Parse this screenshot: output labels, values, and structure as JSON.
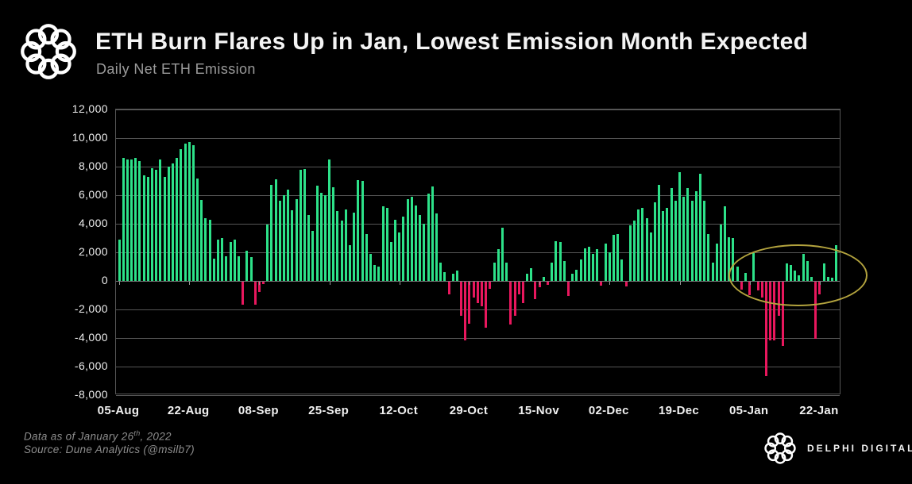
{
  "header": {
    "title": "ETH Burn Flares Up in Jan, Lowest Emission Month Expected",
    "subtitle": "Daily Net ETH Emission"
  },
  "footer": {
    "data_as_of_prefix": "Data as of January 26",
    "data_as_of_sup": "th",
    "data_as_of_suffix": ", 2022",
    "source_line": "Source:  Dune Analytics (@msilb7)",
    "brand_name": "DELPHI DIGITAL"
  },
  "chart_data": {
    "type": "bar",
    "title": "ETH Burn Flares Up in Jan, Lowest Emission Month Expected",
    "subtitle": "Daily Net ETH Emission",
    "ylabel": "",
    "xlabel": "",
    "ylim": [
      -8000,
      12000
    ],
    "y_tick_step": 2000,
    "grid": true,
    "legend": "none",
    "start_date": "2021-08-05",
    "end_date": "2022-01-26",
    "x_tick_labels": [
      "05-Aug",
      "22-Aug",
      "08-Sep",
      "25-Sep",
      "12-Oct",
      "29-Oct",
      "15-Nov",
      "02-Dec",
      "19-Dec",
      "05-Jan",
      "22-Jan"
    ],
    "x_tick_interval_days": 17,
    "colors": {
      "positive": "#2de189",
      "negative": "#e8175d",
      "grid": "#565656",
      "zero_axis": "#7a7a7a",
      "annotation": "#b3a33e",
      "background": "#000000",
      "title": "#f4f4f4",
      "subtitle": "#9a9a9a"
    },
    "annotation_ellipse": {
      "meaning": "highlights January low-emission / burn flare-up period",
      "start_day_index": 148,
      "end_day_index": 181,
      "center_value": 450,
      "value_radius": 2050
    },
    "values_are_daily_net_eth": true,
    "values": [
      2900,
      8600,
      8500,
      8500,
      8600,
      8400,
      7400,
      7300,
      7900,
      7800,
      8500,
      7300,
      8000,
      8200,
      8600,
      9200,
      9600,
      9700,
      9500,
      7150,
      5650,
      4400,
      4280,
      1540,
      2900,
      3000,
      1700,
      2700,
      2900,
      1700,
      -1600,
      2100,
      1650,
      -1600,
      -700,
      -150,
      3950,
      6740,
      7120,
      5630,
      6000,
      6380,
      4950,
      5730,
      7770,
      7860,
      4610,
      3500,
      6650,
      6190,
      6000,
      8500,
      6560,
      4890,
      4240,
      5000,
      2480,
      4800,
      7080,
      6990,
      3300,
      1900,
      1100,
      980,
      5250,
      5100,
      2700,
      4300,
      3400,
      4500,
      5700,
      5900,
      5300,
      4600,
      4000,
      6100,
      6600,
      4700,
      1300,
      600,
      -900,
      500,
      700,
      -2400,
      -4100,
      -2950,
      -1100,
      -1500,
      -1700,
      -3200,
      -500,
      1300,
      2200,
      3700,
      1300,
      -3000,
      -2400,
      -900,
      -1500,
      500,
      900,
      -1200,
      -400,
      300,
      -200,
      1300,
      2800,
      2700,
      1400,
      -1000,
      500,
      800,
      1500,
      2300,
      2400,
      1900,
      2200,
      -300,
      2600,
      2000,
      3200,
      3300,
      1500,
      -350,
      3900,
      4200,
      5000,
      5100,
      4400,
      3400,
      5500,
      6700,
      4900,
      5100,
      6500,
      5600,
      7600,
      5900,
      6500,
      5600,
      6300,
      7500,
      5600,
      3300,
      1300,
      2600,
      3950,
      5200,
      3050,
      3000,
      1000,
      -570,
      560,
      -950,
      1950,
      -600,
      -1100,
      -6600,
      -4100,
      -4100,
      -2400,
      -4500,
      1200,
      1100,
      700,
      400,
      1900,
      1400,
      300,
      -4000,
      -900,
      1200,
      300,
      250,
      2500
    ]
  }
}
